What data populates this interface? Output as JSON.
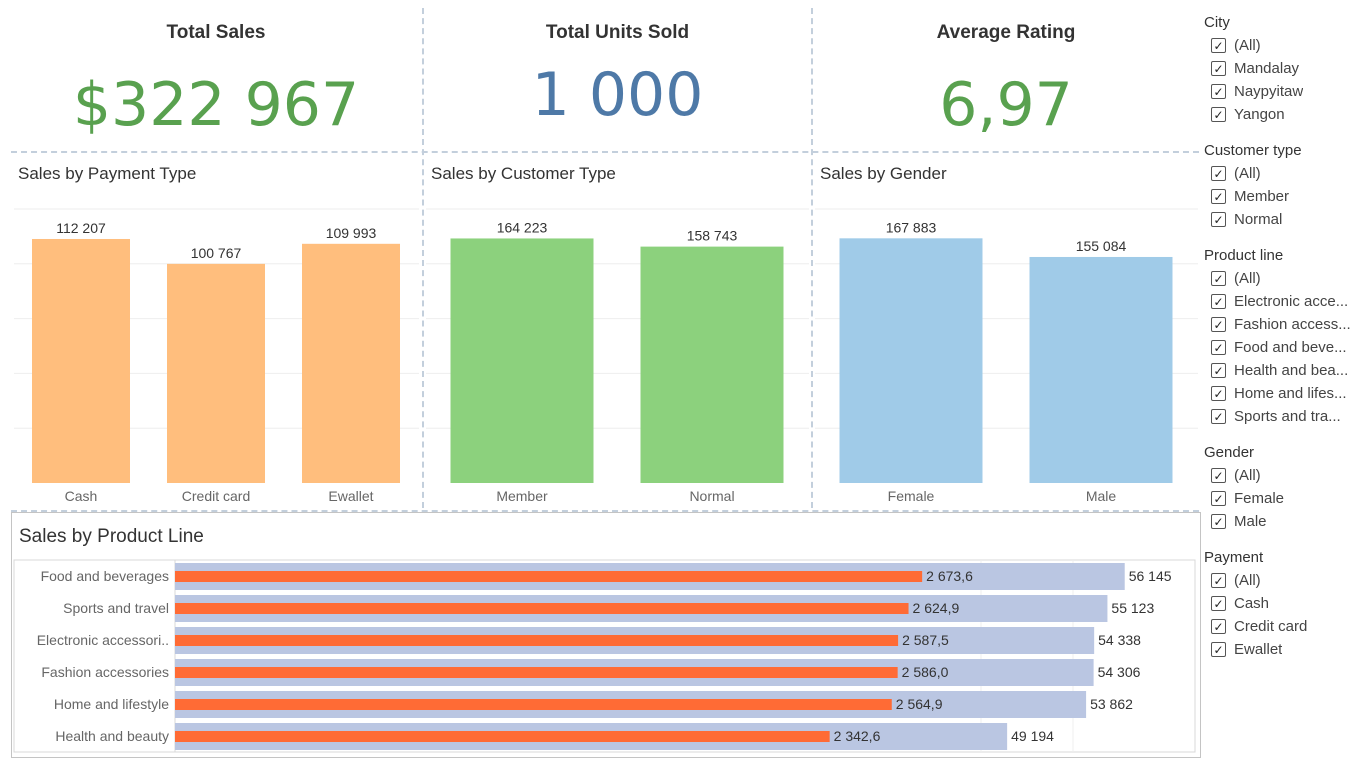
{
  "kpis": {
    "total_sales": {
      "title": "Total Sales",
      "value": "$322 967",
      "color": "#59a14f"
    },
    "total_units": {
      "title": "Total Units Sold",
      "value": "1 000",
      "color": "#4e79a7"
    },
    "avg_rating": {
      "title": "Average Rating",
      "value": "6,97",
      "color": "#59a14f"
    }
  },
  "charts": {
    "payment": {
      "title": "Sales by Payment Type",
      "color": "#ffbe7d"
    },
    "customer": {
      "title": "Sales by Customer Type",
      "color": "#8cd17d"
    },
    "gender": {
      "title": "Sales by Gender",
      "color": "#a0cbe8"
    },
    "product": {
      "title": "Sales by Product Line",
      "bar_color": "#bac6e2",
      "line_color": "#ff6b35"
    }
  },
  "chart_data": [
    {
      "type": "bar",
      "title": "Sales by Payment Type",
      "categories": [
        "Cash",
        "Credit card",
        "Ewallet"
      ],
      "values": [
        112207,
        100767,
        109993
      ],
      "labels": [
        "112 207",
        "100 767",
        "109 993"
      ],
      "ylim": [
        0,
        126000
      ]
    },
    {
      "type": "bar",
      "title": "Sales by Customer Type",
      "categories": [
        "Member",
        "Normal"
      ],
      "values": [
        164223,
        158743
      ],
      "labels": [
        "164 223",
        "158 743"
      ],
      "ylim": [
        0,
        184000
      ]
    },
    {
      "type": "bar",
      "title": "Sales by Gender",
      "categories": [
        "Female",
        "Male"
      ],
      "values": [
        167883,
        155084
      ],
      "labels": [
        "167 883",
        "155 084"
      ],
      "ylim": [
        0,
        188000
      ]
    },
    {
      "type": "bar",
      "orientation": "horizontal",
      "title": "Sales by Product Line",
      "categories": [
        "Food and beverages",
        "Sports and travel",
        "Electronic accessori..",
        "Fashion accessories",
        "Home and lifestyle",
        "Health and beauty"
      ],
      "series": [
        {
          "values": [
            56145,
            55123,
            54338,
            54306,
            53862,
            49194
          ],
          "labels": [
            "56 145",
            "55 123",
            "54 338",
            "54 306",
            "53 862",
            "49 194"
          ]
        },
        {
          "values": [
            2673.6,
            2624.9,
            2587.5,
            2586.0,
            2564.9,
            2342.6
          ],
          "labels": [
            "2 673,6",
            "2 624,9",
            "2 587,5",
            "2 586,0",
            "2 564,9",
            "2 342,6"
          ]
        }
      ],
      "xlim": [
        0,
        60300
      ],
      "xlim_secondary": [
        0,
        3650
      ]
    }
  ],
  "filters": [
    {
      "title": "City",
      "items": [
        "(All)",
        "Mandalay",
        "Naypyitaw",
        "Yangon"
      ]
    },
    {
      "title": "Customer type",
      "items": [
        "(All)",
        "Member",
        "Normal"
      ]
    },
    {
      "title": "Product line",
      "items": [
        "(All)",
        "Electronic acce...",
        "Fashion access...",
        "Food and beve...",
        "Health and bea...",
        "Home and lifes...",
        "Sports and tra..."
      ]
    },
    {
      "title": "Gender",
      "items": [
        "(All)",
        "Female",
        "Male"
      ]
    },
    {
      "title": "Payment",
      "items": [
        "(All)",
        "Cash",
        "Credit card",
        "Ewallet"
      ]
    }
  ],
  "checkmark": "✓"
}
